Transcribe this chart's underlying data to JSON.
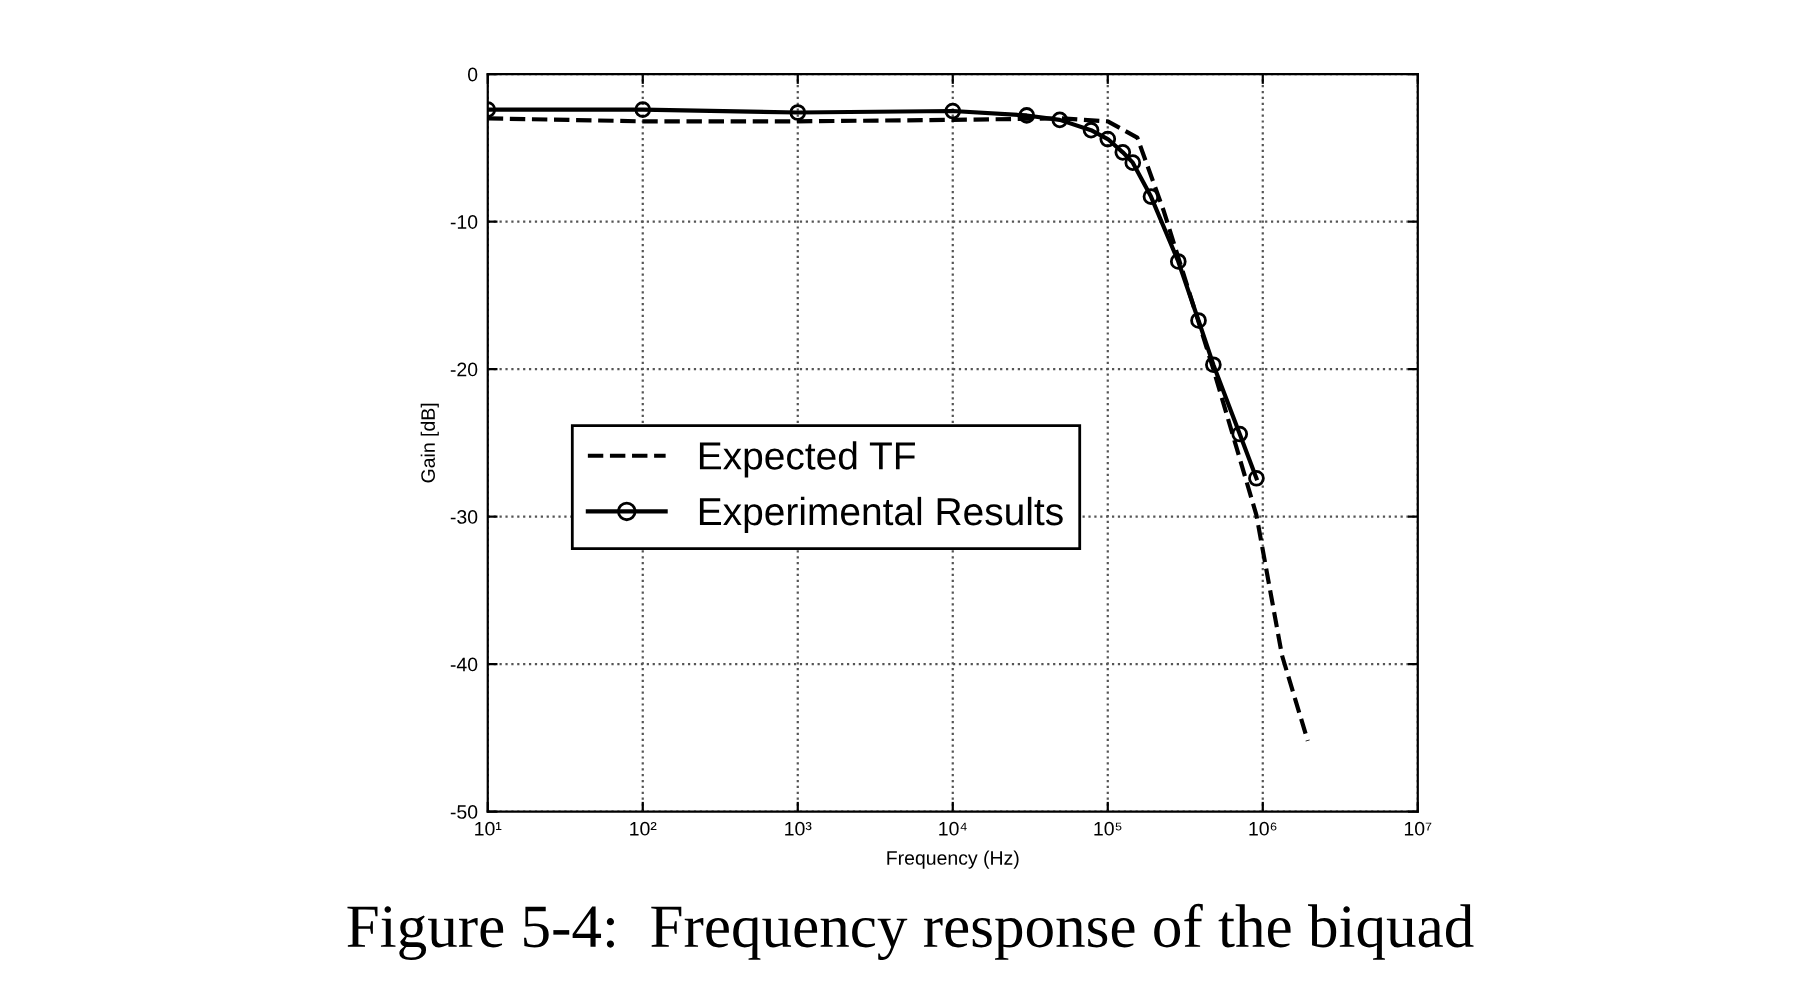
{
  "chart_data": {
    "type": "line",
    "xlabel": "Frequency (Hz)",
    "ylabel": "Gain [dB]",
    "annotations": [
      "Figure 5-4:  Frequency response of the biquad"
    ],
    "log": "x",
    "grid": true,
    "legend": "left",
    "xlim": [
      10,
      10000000
    ],
    "ylim": [
      -50,
      0
    ],
    "xticks": [
      {
        "value": 10,
        "label": "10¹"
      },
      {
        "value": 100,
        "label": "10²"
      },
      {
        "value": 1000,
        "label": "10³"
      },
      {
        "value": 10000,
        "label": "10⁴"
      },
      {
        "value": 100000,
        "label": "10⁵"
      },
      {
        "value": 1000000,
        "label": "10⁶"
      },
      {
        "value": 10000000,
        "label": "10⁷"
      }
    ],
    "yticks": [
      0,
      -10,
      -20,
      -30,
      -40,
      -50
    ],
    "series": [
      {
        "name": "Expected TF",
        "color": "#000000",
        "line_style": "dashed",
        "marker": "none",
        "x": [
          10,
          100,
          1000,
          10000,
          50000,
          100000,
          155000,
          230000,
          480000,
          910000,
          1330000,
          1950000
        ],
        "values": [
          -3.0,
          -3.2,
          -3.2,
          -3.1,
          -3.0,
          -3.2,
          -4.3,
          -9.3,
          -20.0,
          -29.9,
          -39.4,
          -45.2
        ]
      },
      {
        "name": "Experimental Results",
        "color": "#000000",
        "line_style": "solid",
        "marker": "circle",
        "x": [
          10,
          100,
          1000,
          10000,
          30000,
          49000,
          78000,
          100000,
          125000,
          145000,
          190000,
          285000,
          385000,
          480000,
          710000,
          910000
        ],
        "values": [
          -2.4,
          -2.4,
          -2.6,
          -2.5,
          -2.8,
          -3.1,
          -3.8,
          -4.4,
          -5.3,
          -6.0,
          -8.3,
          -12.7,
          -16.7,
          -19.7,
          -24.4,
          -27.4
        ]
      }
    ]
  }
}
